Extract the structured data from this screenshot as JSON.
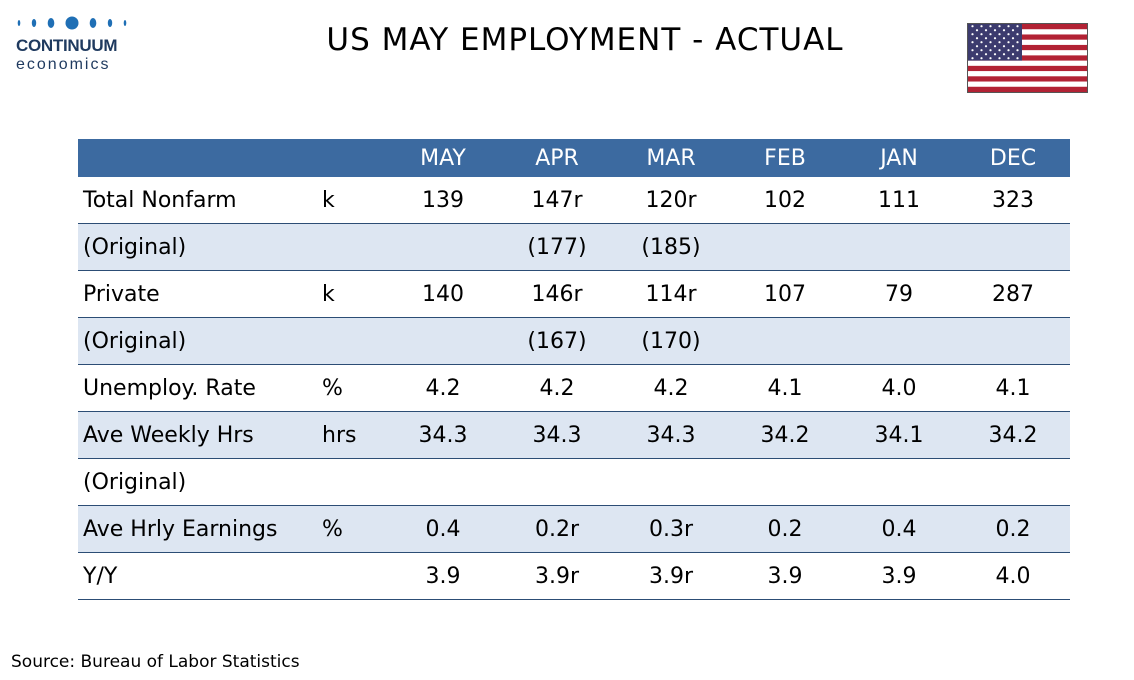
{
  "brand": {
    "name_line1": "CONTINUUM",
    "name_line2": "economics",
    "color": "#1f3a5f"
  },
  "title": "US MAY EMPLOYMENT - ACTUAL",
  "flag_icon": "us-flag-icon",
  "table": {
    "header_color": "#3c6aa0",
    "stripe_color": "#dde6f2",
    "columns": [
      "",
      "",
      "MAY",
      "APR",
      "MAR",
      "FEB",
      "JAN",
      "DEC"
    ],
    "rows": [
      {
        "label": "Total Nonfarm",
        "unit": "k",
        "values": [
          "139",
          "147r",
          "120r",
          "102",
          "111",
          "323"
        ]
      },
      {
        "label": "(Original)",
        "unit": "",
        "values": [
          "",
          "(177)",
          "(185)",
          "",
          "",
          ""
        ]
      },
      {
        "label": "Private",
        "unit": "k",
        "values": [
          "140",
          "146r",
          "114r",
          "107",
          "79",
          "287"
        ]
      },
      {
        "label": "(Original)",
        "unit": "",
        "values": [
          "",
          "(167)",
          "(170)",
          "",
          "",
          ""
        ]
      },
      {
        "label": "Unemploy. Rate",
        "unit": "%",
        "values": [
          "4.2",
          "4.2",
          "4.2",
          "4.1",
          "4.0",
          "4.1"
        ]
      },
      {
        "label": "Ave Weekly Hrs",
        "unit": "hrs",
        "values": [
          "34.3",
          "34.3",
          "34.3",
          "34.2",
          "34.1",
          "34.2"
        ]
      },
      {
        "label": "(Original)",
        "unit": "",
        "values": [
          "",
          "",
          "",
          "",
          "",
          ""
        ]
      },
      {
        "label": "Ave Hrly Earnings",
        "unit": "%",
        "values": [
          "0.4",
          "0.2r",
          "0.3r",
          "0.2",
          "0.4",
          "0.2"
        ]
      },
      {
        "label": "Y/Y",
        "unit": "",
        "values": [
          "3.9",
          "3.9r",
          "3.9r",
          "3.9",
          "3.9",
          "4.0"
        ]
      }
    ]
  },
  "source": "Source: Bureau of Labor Statistics"
}
